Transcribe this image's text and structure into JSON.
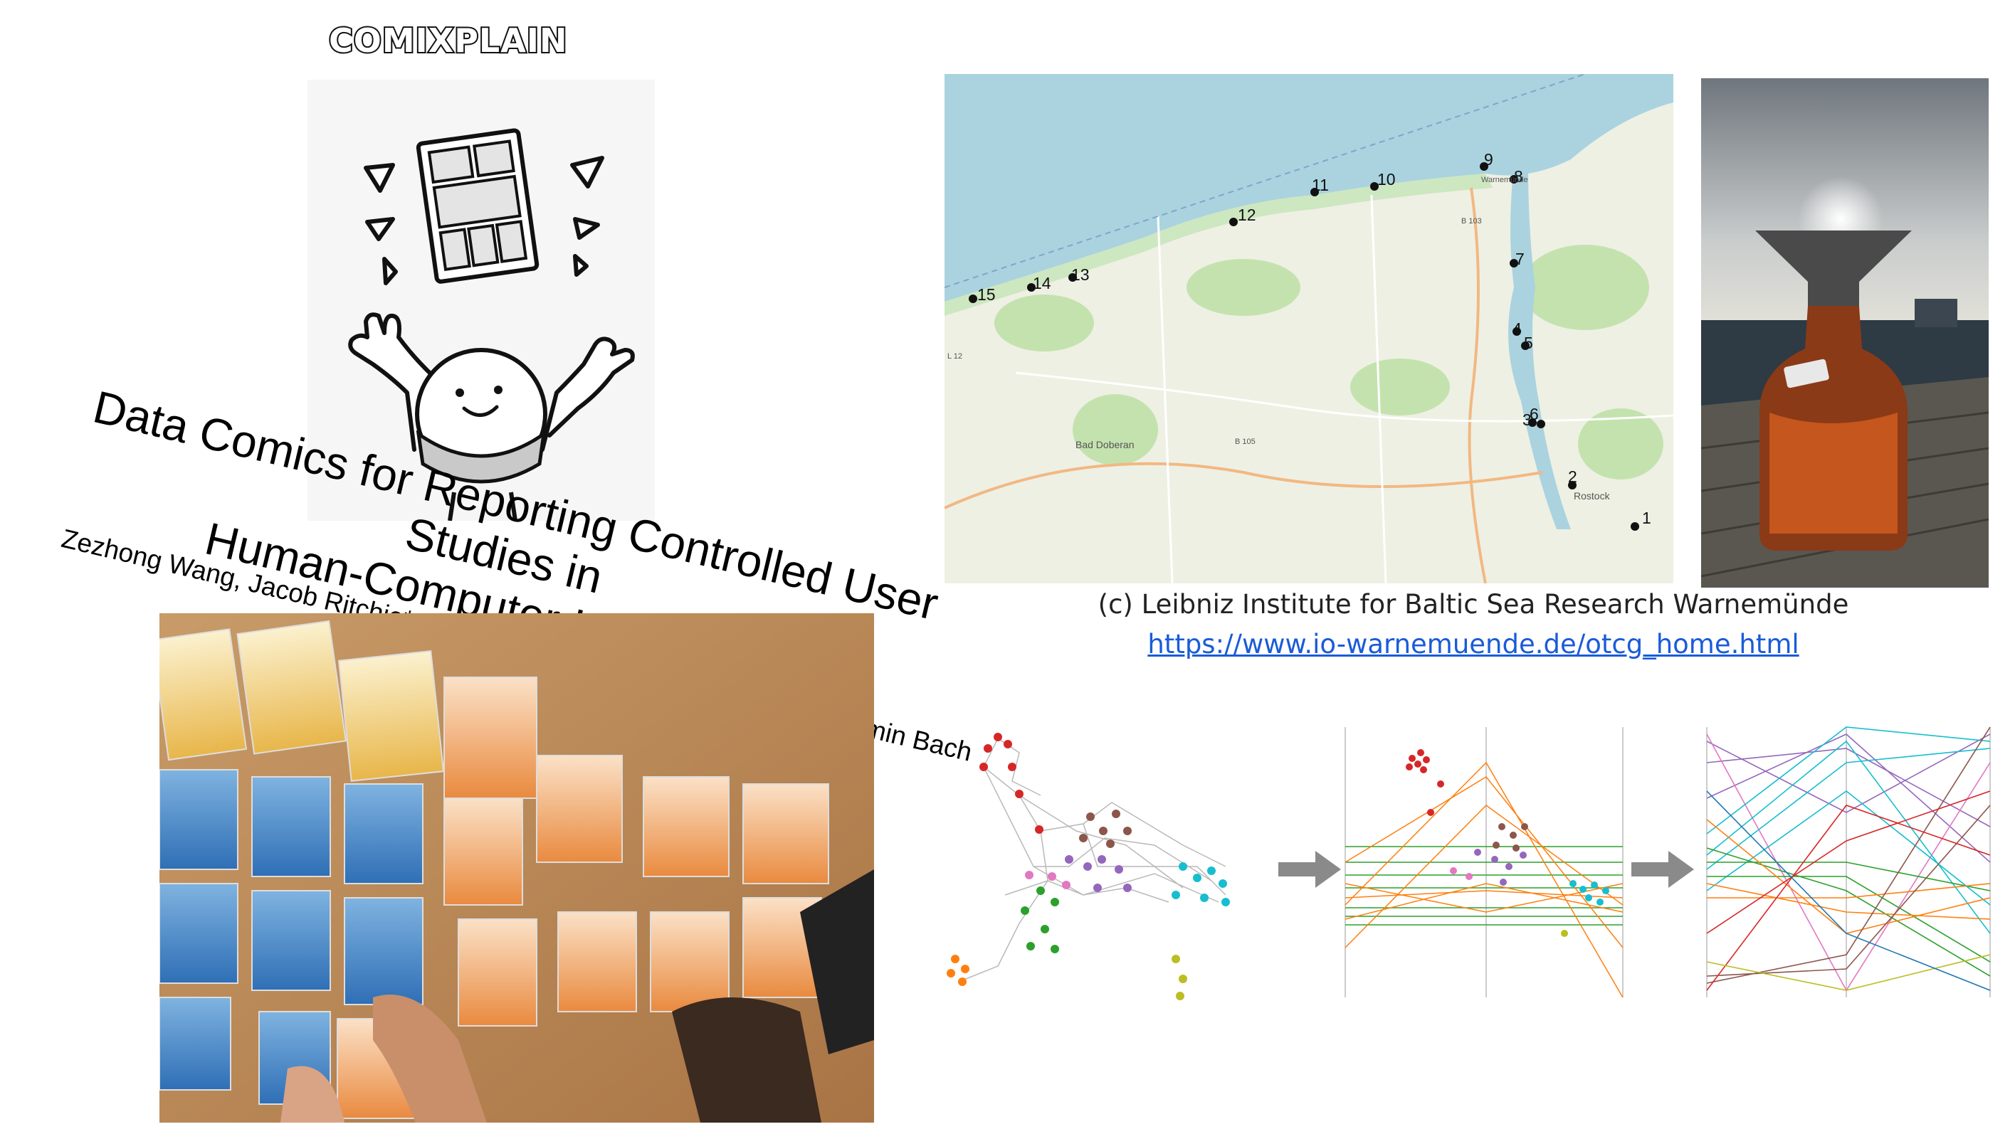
{
  "logo": {
    "text": "COMIXPLAIN"
  },
  "paper": {
    "title_line1": "Data Comics for Reporting Controlled User Studies in",
    "title_line2": "Human-Computer Interaction",
    "authors": "Zezhong Wang, Jacob Ritchie*, Jingtao Zhou*, Fanny Chevalier, Benjamin Bach"
  },
  "map": {
    "station_labels": [
      "1",
      "2",
      "3",
      "4",
      "5",
      "6",
      "7",
      "8",
      "9",
      "10",
      "11",
      "12",
      "13",
      "14",
      "15"
    ],
    "place_labels": {
      "bad_doberan": "Bad Doberan",
      "rostock": "Rostock",
      "warnemuende": "Warnemünde",
      "b105": "B 105",
      "b103": "B 103",
      "l12": "L 12"
    },
    "water_color": "#aad3df",
    "land_color": "#eef0e4"
  },
  "credit": {
    "text": "(c) Leibniz Institute for Baltic Sea Research Warnemünde",
    "link": "https://www.io-warnemuende.de/otcg_home.html"
  },
  "colors": {
    "link": "#1a5bd8",
    "arrow": "#8a8a8a",
    "viz_orange": "#ff7f0e",
    "viz_green": "#2ca02c",
    "viz_red": "#d62728",
    "viz_purple": "#9467bd",
    "viz_brown": "#8c564b",
    "viz_pink": "#e377c2",
    "viz_cyan": "#17becf",
    "viz_olive": "#bcbd22"
  },
  "icons": [
    "comic-character-icon",
    "right-arrow-icon"
  ]
}
